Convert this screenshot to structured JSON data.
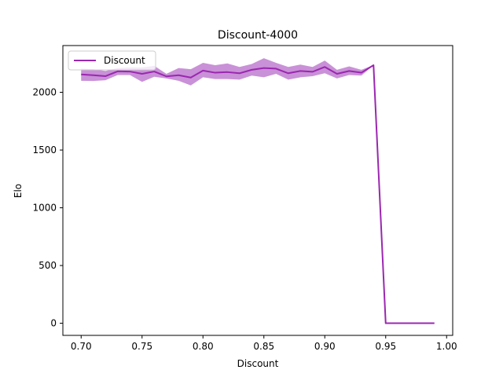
{
  "chart_data": {
    "type": "line",
    "title": "Discount-4000",
    "xlabel": "Discount",
    "ylabel": "Elo",
    "xlim": [
      0.685,
      1.005
    ],
    "ylim": [
      -105,
      2405
    ],
    "xticks": [
      0.7,
      0.75,
      0.8,
      0.85,
      0.9,
      0.95,
      1.0
    ],
    "xtick_labels": [
      "0.70",
      "0.75",
      "0.80",
      "0.85",
      "0.90",
      "0.95",
      "1.00"
    ],
    "yticks": [
      0,
      500,
      1000,
      1500,
      2000
    ],
    "ytick_labels": [
      "0",
      "500",
      "1000",
      "1500",
      "2000"
    ],
    "grid": false,
    "legend_position": "top-left",
    "color": "#9b27b0",
    "band_color": "#c07ed0",
    "series": [
      {
        "name": "Discount",
        "x": [
          0.7,
          0.71,
          0.72,
          0.73,
          0.74,
          0.75,
          0.76,
          0.77,
          0.78,
          0.79,
          0.8,
          0.81,
          0.82,
          0.83,
          0.84,
          0.85,
          0.86,
          0.87,
          0.88,
          0.89,
          0.9,
          0.91,
          0.92,
          0.93,
          0.94,
          0.95,
          0.96,
          0.97,
          0.98,
          0.99
        ],
        "y": [
          2155,
          2148,
          2140,
          2182,
          2180,
          2160,
          2180,
          2138,
          2148,
          2128,
          2188,
          2170,
          2175,
          2165,
          2195,
          2210,
          2205,
          2165,
          2185,
          2178,
          2220,
          2160,
          2185,
          2170,
          2235,
          0,
          0,
          0,
          0,
          0
        ],
        "lower": [
          2100,
          2098,
          2105,
          2150,
          2150,
          2090,
          2135,
          2120,
          2100,
          2060,
          2130,
          2115,
          2115,
          2110,
          2145,
          2130,
          2160,
          2110,
          2130,
          2140,
          2165,
          2120,
          2150,
          2145,
          2235,
          0,
          0,
          0,
          0,
          0
        ],
        "upper": [
          2205,
          2200,
          2185,
          2210,
          2215,
          2215,
          2230,
          2160,
          2210,
          2200,
          2255,
          2235,
          2250,
          2220,
          2245,
          2295,
          2255,
          2220,
          2240,
          2220,
          2275,
          2195,
          2225,
          2195,
          2235,
          0,
          0,
          0,
          0,
          0
        ]
      }
    ]
  }
}
